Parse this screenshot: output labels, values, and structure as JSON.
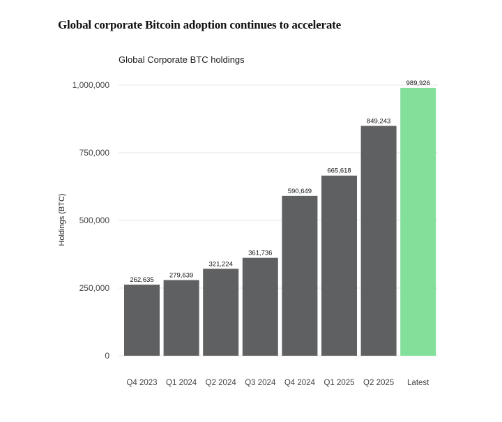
{
  "header": {
    "headline": "Global corporate Bitcoin adoption continues to accelerate"
  },
  "chart_data": {
    "type": "bar",
    "title": "Global Corporate BTC holdings",
    "xlabel": "",
    "ylabel": "Holdings (BTC)",
    "ylim": [
      0,
      1000000
    ],
    "yticks": [
      0,
      250000,
      500000,
      750000,
      1000000
    ],
    "ytick_labels": [
      "0",
      "250,000",
      "500,000",
      "750,000",
      "1,000,000"
    ],
    "grid": true,
    "legend": "none",
    "categories": [
      "Q4 2023",
      "Q1 2024",
      "Q2 2024",
      "Q3 2024",
      "Q4 2024",
      "Q1 2025",
      "Q2 2025",
      "Latest"
    ],
    "values": [
      262635,
      279639,
      321224,
      361736,
      590649,
      665618,
      849243,
      989926
    ],
    "value_labels": [
      "262,635",
      "279,639",
      "321,224",
      "361,736",
      "590,649",
      "665,618",
      "849,243",
      "989,926"
    ],
    "colors": {
      "bar": "#5e6061",
      "highlight_bar": "#82e09a",
      "gridline": "#e4e4e4",
      "axis_text": "#444444"
    },
    "highlight_category": "Latest"
  }
}
